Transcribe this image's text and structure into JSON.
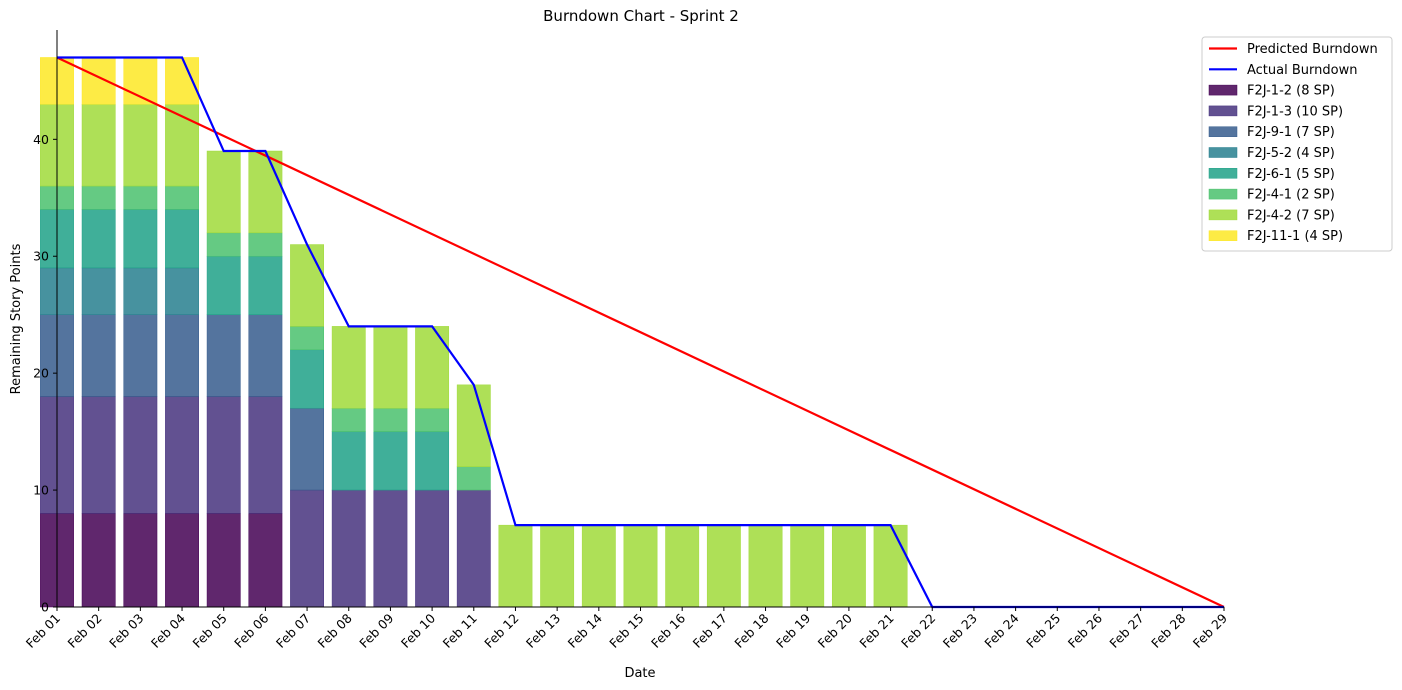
{
  "chart_data": {
    "type": "bar",
    "title": "Burndown Chart - Sprint 2",
    "xlabel": "Date",
    "ylabel": "Remaining Story Points",
    "ylim": [
      0,
      49.35
    ],
    "yticks": [
      0,
      10,
      20,
      30,
      40
    ],
    "grid": false,
    "legend_position": "top-right",
    "categories": [
      "Feb 01",
      "Feb 02",
      "Feb 03",
      "Feb 04",
      "Feb 05",
      "Feb 06",
      "Feb 07",
      "Feb 08",
      "Feb 09",
      "Feb 10",
      "Feb 11",
      "Feb 12",
      "Feb 13",
      "Feb 14",
      "Feb 15",
      "Feb 16",
      "Feb 17",
      "Feb 18",
      "Feb 19",
      "Feb 20",
      "Feb 21",
      "Feb 22",
      "Feb 23",
      "Feb 24",
      "Feb 25",
      "Feb 26",
      "Feb 27",
      "Feb 28",
      "Feb 29"
    ],
    "bar_series": [
      {
        "name": "F2J-1-2 (8 SP)",
        "color": "#440154",
        "values": [
          8,
          8,
          8,
          8,
          8,
          8,
          0,
          0,
          0,
          0,
          0,
          0,
          0,
          0,
          0,
          0,
          0,
          0,
          0,
          0,
          0,
          0,
          0,
          0,
          0,
          0,
          0,
          0,
          0
        ]
      },
      {
        "name": "F2J-1-3 (10 SP)",
        "color": "#46327e",
        "values": [
          10,
          10,
          10,
          10,
          10,
          10,
          10,
          10,
          10,
          10,
          10,
          0,
          0,
          0,
          0,
          0,
          0,
          0,
          0,
          0,
          0,
          0,
          0,
          0,
          0,
          0,
          0,
          0,
          0
        ]
      },
      {
        "name": "F2J-9-1 (7 SP)",
        "color": "#365c8d",
        "values": [
          7,
          7,
          7,
          7,
          7,
          7,
          7,
          0,
          0,
          0,
          0,
          0,
          0,
          0,
          0,
          0,
          0,
          0,
          0,
          0,
          0,
          0,
          0,
          0,
          0,
          0,
          0,
          0,
          0
        ]
      },
      {
        "name": "F2J-5-2 (4 SP)",
        "color": "#277f8e",
        "values": [
          4,
          4,
          4,
          4,
          0,
          0,
          0,
          0,
          0,
          0,
          0,
          0,
          0,
          0,
          0,
          0,
          0,
          0,
          0,
          0,
          0,
          0,
          0,
          0,
          0,
          0,
          0,
          0,
          0
        ]
      },
      {
        "name": "F2J-6-1 (5 SP)",
        "color": "#1fa187",
        "values": [
          5,
          5,
          5,
          5,
          5,
          5,
          5,
          5,
          5,
          5,
          0,
          0,
          0,
          0,
          0,
          0,
          0,
          0,
          0,
          0,
          0,
          0,
          0,
          0,
          0,
          0,
          0,
          0,
          0
        ]
      },
      {
        "name": "F2J-4-1 (2 SP)",
        "color": "#4ac16d",
        "values": [
          2,
          2,
          2,
          2,
          2,
          2,
          2,
          2,
          2,
          2,
          2,
          0,
          0,
          0,
          0,
          0,
          0,
          0,
          0,
          0,
          0,
          0,
          0,
          0,
          0,
          0,
          0,
          0,
          0
        ]
      },
      {
        "name": "F2J-4-2 (7 SP)",
        "color": "#a0da39",
        "values": [
          7,
          7,
          7,
          7,
          7,
          7,
          7,
          7,
          7,
          7,
          7,
          7,
          7,
          7,
          7,
          7,
          7,
          7,
          7,
          7,
          7,
          0,
          0,
          0,
          0,
          0,
          0,
          0,
          0
        ]
      },
      {
        "name": "F2J-11-1 (4 SP)",
        "color": "#fde725",
        "values": [
          4,
          4,
          4,
          4,
          0,
          0,
          0,
          0,
          0,
          0,
          0,
          0,
          0,
          0,
          0,
          0,
          0,
          0,
          0,
          0,
          0,
          0,
          0,
          0,
          0,
          0,
          0,
          0,
          0
        ]
      }
    ],
    "line_series": [
      {
        "name": "Predicted Burndown",
        "color": "#ff0000",
        "values": [
          47,
          0
        ],
        "index": [
          0,
          28
        ]
      },
      {
        "name": "Actual Burndown",
        "color": "#0000ff",
        "values": [
          47,
          47,
          47,
          47,
          39,
          39,
          31,
          24,
          24,
          24,
          19,
          7,
          7,
          7,
          7,
          7,
          7,
          7,
          7,
          7,
          7,
          0,
          0,
          0,
          0,
          0,
          0,
          0,
          0
        ]
      }
    ]
  }
}
